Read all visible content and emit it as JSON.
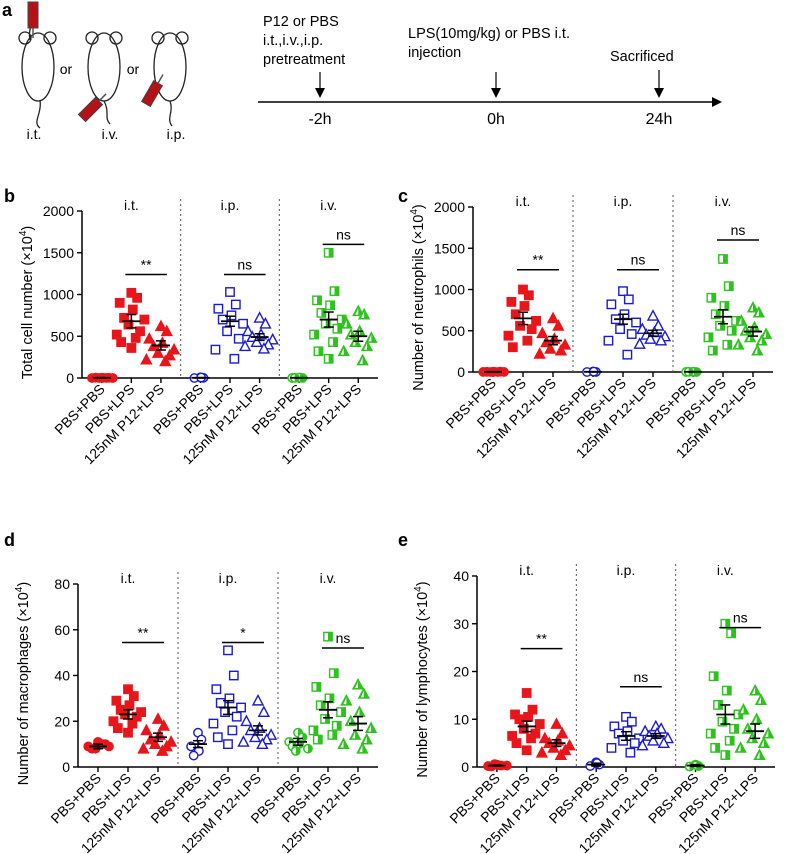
{
  "panel_a": {
    "label": "a",
    "routes": [
      "i.t.",
      "i.v.",
      "i.p."
    ],
    "or_text": "or",
    "events": [
      {
        "lines": [
          "P12 or PBS",
          "i.t.,i.v.,i.p.",
          "pretreatment"
        ],
        "time": "-2h"
      },
      {
        "lines": [
          "LPS(10mg/kg) or PBS i.t.",
          "injection"
        ],
        "time": "0h"
      },
      {
        "lines": [
          "Sacrificed"
        ],
        "time": "24h"
      }
    ]
  },
  "colors": {
    "it": "#e8161b",
    "ip": "#1a1ad1",
    "iv": "#2ec21f"
  },
  "chart_data": [
    {
      "label": "b",
      "type": "scatter",
      "ylabel": "Total cell number",
      "yunit": "(×10",
      "ylim": [
        0,
        2000
      ],
      "yticks": [
        "0",
        "500",
        "1000",
        "1500",
        "2000"
      ],
      "groups": [
        "i.t.",
        "i.p.",
        "i.v."
      ],
      "categories": [
        "PBS+PBS",
        "PBS+LPS",
        "125nM P12+LPS"
      ],
      "significance": [
        "**",
        "ns",
        "ns"
      ],
      "series": [
        {
          "name": "i.t.",
          "color": "#e8161b",
          "means": [
            2,
            680,
            390
          ],
          "sems": [
            2,
            80,
            55
          ],
          "points": [
            [
              3,
              1,
              0,
              2,
              4,
              0,
              1,
              3
            ],
            [
              1020,
              960,
              900,
              820,
              720,
              700,
              640,
              560,
              520,
              480,
              430,
              360
            ],
            [
              620,
              560,
              470,
              420,
              380,
              340,
              300,
              270,
              220,
              200
            ]
          ]
        },
        {
          "name": "i.p.",
          "color": "#1a1ad1",
          "means": [
            2,
            680,
            490
          ],
          "sems": [
            3,
            60,
            40
          ],
          "points": [
            [
              8,
              2,
              0,
              6
            ],
            [
              1030,
              880,
              830,
              750,
              700,
              650,
              560,
              470,
              340,
              230
            ],
            [
              720,
              650,
              560,
              520,
              490,
              460,
              430,
              400,
              380,
              350
            ]
          ]
        },
        {
          "name": "i.v.",
          "color": "#2ec21f",
          "means": [
            2,
            700,
            500
          ],
          "sems": [
            2,
            90,
            60
          ],
          "points": [
            [
              3,
              0,
              1,
              5,
              2
            ],
            [
              1500,
              1040,
              930,
              870,
              780,
              700,
              650,
              590,
              520,
              430,
              320,
              230
            ],
            [
              800,
              760,
              650,
              560,
              520,
              480,
              430,
              380,
              320,
              210
            ]
          ]
        }
      ]
    },
    {
      "label": "c",
      "type": "scatter",
      "ylabel": "Number of neutrophils",
      "yunit": "(×10",
      "ylim": [
        0,
        2000
      ],
      "yticks": [
        "0",
        "500",
        "1000",
        "1500",
        "2000"
      ],
      "groups": [
        "i.t.",
        "i.p.",
        "i.v."
      ],
      "categories": [
        "PBS+PBS",
        "PBS+LPS",
        "125nM P12+LPS"
      ],
      "significance": [
        "**",
        "ns",
        "ns"
      ],
      "series": [
        {
          "name": "i.t.",
          "color": "#e8161b",
          "means": [
            2,
            650,
            380
          ],
          "sems": [
            2,
            75,
            50
          ],
          "points": [
            [
              2,
              0,
              1,
              3,
              2,
              1,
              0,
              4
            ],
            [
              1000,
              930,
              850,
              800,
              700,
              620,
              560,
              520,
              440,
              380,
              300
            ],
            [
              650,
              560,
              470,
              400,
              360,
              330,
              280,
              260,
              220
            ]
          ]
        },
        {
          "name": "i.p.",
          "color": "#1a1ad1",
          "means": [
            2,
            640,
            470
          ],
          "sems": [
            2,
            60,
            35
          ],
          "points": [
            [
              5,
              1,
              0,
              4
            ],
            [
              980,
              880,
              820,
              700,
              640,
              600,
              520,
              460,
              380,
              210
            ],
            [
              680,
              560,
              520,
              480,
              450,
              430,
              400,
              380,
              340
            ]
          ]
        },
        {
          "name": "i.v.",
          "color": "#2ec21f",
          "means": [
            2,
            670,
            490
          ],
          "sems": [
            2,
            85,
            55
          ],
          "points": [
            [
              2,
              0,
              1,
              3,
              2
            ],
            [
              1370,
              1040,
              900,
              800,
              700,
              620,
              560,
              500,
              420,
              330,
              260
            ],
            [
              780,
              720,
              620,
              540,
              500,
              460,
              420,
              380,
              330,
              260
            ]
          ]
        }
      ]
    },
    {
      "label": "d",
      "type": "scatter",
      "ylabel": "Number of macrophages",
      "yunit": "(×10",
      "ylim": [
        0,
        80
      ],
      "yticks": [
        "0",
        "20",
        "40",
        "60",
        "80"
      ],
      "groups": [
        "i.t.",
        "i.p.",
        "i.v."
      ],
      "categories": [
        "PBS+PBS",
        "PBS+LPS",
        "125nM P12+LPS"
      ],
      "significance": [
        "**",
        "*",
        "ns"
      ],
      "series": [
        {
          "name": "i.t.",
          "color": "#e8161b",
          "means": [
            9,
            23,
            13
          ],
          "sems": [
            1,
            2,
            1.8
          ],
          "points": [
            [
              11,
              10,
              9,
              10,
              8,
              9,
              8,
              10
            ],
            [
              34,
              31,
              29,
              27,
              25,
              24,
              23,
              22,
              20,
              19,
              17,
              15
            ],
            [
              21,
              18,
              16,
              14,
              12,
              11,
              10,
              9,
              8,
              7
            ]
          ]
        },
        {
          "name": "i.p.",
          "color": "#1a1ad1",
          "means": [
            10,
            26,
            16
          ],
          "sems": [
            1.5,
            3,
            2
          ],
          "points": [
            [
              15,
              12,
              9,
              7,
              5
            ],
            [
              51,
              40,
              34,
              30,
              28,
              26,
              24,
              22,
              19,
              16,
              13,
              10
            ],
            [
              29,
              24,
              20,
              17,
              16,
              14,
              13,
              12,
              11,
              10
            ]
          ]
        },
        {
          "name": "i.v.",
          "color": "#2ec21f",
          "means": [
            11,
            25,
            19
          ],
          "sems": [
            1.5,
            3.5,
            3
          ],
          "points": [
            [
              15,
              13,
              11,
              10,
              9,
              8,
              7
            ],
            [
              57,
              41,
              35,
              30,
              27,
              24,
              21,
              18,
              16,
              14,
              12
            ],
            [
              36,
              32,
              29,
              24,
              20,
              17,
              14,
              12,
              10,
              8
            ]
          ]
        }
      ]
    },
    {
      "label": "e",
      "type": "scatter",
      "ylabel": "Number of lymphocytes",
      "yunit": "(×10",
      "ylim": [
        0,
        40
      ],
      "yticks": [
        "0",
        "10",
        "20",
        "30",
        "40"
      ],
      "groups": [
        "i.t.",
        "i.p.",
        "i.v."
      ],
      "categories": [
        "PBS+PBS",
        "PBS+LPS",
        "125nM P12+LPS"
      ],
      "significance": [
        "**",
        "ns",
        "ns"
      ],
      "series": [
        {
          "name": "i.t.",
          "color": "#e8161b",
          "means": [
            0.3,
            8.5,
            5
          ],
          "sems": [
            0.1,
            1.1,
            0.7
          ],
          "points": [
            [
              0.5,
              0.3,
              0.2,
              0.4,
              0.1,
              0.3,
              0.6
            ],
            [
              15.5,
              12,
              11,
              10.5,
              10,
              9,
              8,
              7,
              6.5,
              6,
              5,
              3.5
            ],
            [
              9,
              7,
              6,
              5.5,
              5,
              4.5,
              4,
              3.5,
              3,
              2.5
            ]
          ]
        },
        {
          "name": "i.p.",
          "color": "#1a1ad1",
          "means": [
            0.5,
            6.5,
            6.5
          ],
          "sems": [
            0.3,
            0.9,
            0.5
          ],
          "points": [
            [
              1,
              0.5,
              0.2,
              0.8
            ],
            [
              10.5,
              9.5,
              8.5,
              7.5,
              7,
              6,
              5.5,
              5,
              4,
              3
            ],
            [
              8.5,
              8,
              7.5,
              7,
              6.5,
              6,
              5.5,
              5,
              4.5
            ]
          ]
        },
        {
          "name": "i.v.",
          "color": "#2ec21f",
          "means": [
            0.3,
            11,
            7.5
          ],
          "sems": [
            0.2,
            2,
            1.5
          ],
          "points": [
            [
              0.5,
              0.2,
              0.1,
              0.4
            ],
            [
              30,
              28,
              19,
              16,
              13,
              11,
              9.5,
              8,
              7,
              5.5,
              4,
              2.5
            ],
            [
              16,
              14,
              12,
              10,
              8,
              7,
              6,
              5,
              4,
              2.5
            ]
          ]
        }
      ]
    }
  ]
}
